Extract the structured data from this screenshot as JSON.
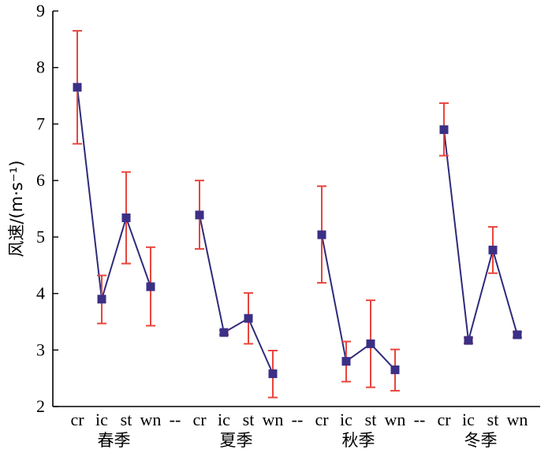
{
  "chart_data": {
    "type": "line",
    "title": "",
    "xlabel": "",
    "ylabel": "风速/(m·s⁻¹)",
    "ylim": [
      2,
      9
    ],
    "yticks": [
      2,
      3,
      4,
      5,
      6,
      7,
      8,
      9
    ],
    "grid": false,
    "legend": "none",
    "colors": {
      "line": "#2e2a7a",
      "marker": "#3b2f86",
      "error": "#e8453c",
      "axis": "#000000"
    },
    "x_ticks": [
      "cr",
      "ic",
      "st",
      "wn",
      "--",
      "cr",
      "ic",
      "st",
      "wn",
      "--",
      "cr",
      "ic",
      "st",
      "wn",
      "--",
      "cr",
      "ic",
      "st",
      "wn"
    ],
    "groups": [
      {
        "name": "春季",
        "categories": [
          "cr",
          "ic",
          "st",
          "wn"
        ],
        "values": [
          7.65,
          3.9,
          5.34,
          4.12
        ],
        "error_low": [
          6.65,
          3.47,
          4.53,
          3.43
        ],
        "error_high": [
          8.65,
          4.32,
          6.15,
          4.82
        ]
      },
      {
        "name": "夏季",
        "categories": [
          "cr",
          "ic",
          "st",
          "wn"
        ],
        "values": [
          5.39,
          3.31,
          3.56,
          2.58
        ],
        "error_low": [
          4.79,
          3.27,
          3.11,
          2.16
        ],
        "error_high": [
          6.0,
          3.35,
          4.01,
          2.99
        ]
      },
      {
        "name": "秋季",
        "categories": [
          "cr",
          "ic",
          "st",
          "wn"
        ],
        "values": [
          5.04,
          2.8,
          3.11,
          2.65
        ],
        "error_low": [
          4.19,
          2.44,
          2.34,
          2.28
        ],
        "error_high": [
          5.9,
          3.15,
          3.88,
          3.01
        ]
      },
      {
        "name": "冬季",
        "categories": [
          "cr",
          "ic",
          "st",
          "wn"
        ],
        "values": [
          6.9,
          3.17,
          4.77,
          3.27
        ],
        "error_low": [
          6.44,
          3.12,
          4.36,
          3.22
        ],
        "error_high": [
          7.37,
          3.22,
          5.18,
          3.32
        ]
      }
    ]
  }
}
